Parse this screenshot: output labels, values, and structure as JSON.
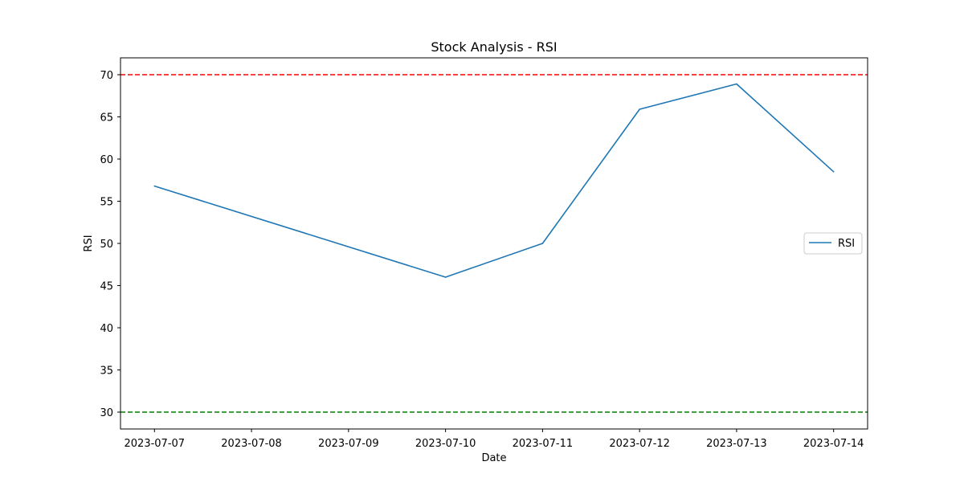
{
  "chart_data": {
    "type": "line",
    "title": "Stock Analysis - RSI",
    "xlabel": "Date",
    "ylabel": "RSI",
    "x": [
      "2023-07-07",
      "2023-07-08",
      "2023-07-09",
      "2023-07-10",
      "2023-07-11",
      "2023-07-12",
      "2023-07-13",
      "2023-07-14"
    ],
    "series": [
      {
        "name": "RSI",
        "color": "#1f77b4",
        "points": [
          {
            "x": "2023-07-07",
            "y": 56.8
          },
          {
            "x": "2023-07-10",
            "y": 46.0
          },
          {
            "x": "2023-07-11",
            "y": 50.0
          },
          {
            "x": "2023-07-12",
            "y": 65.9
          },
          {
            "x": "2023-07-13",
            "y": 68.9
          },
          {
            "x": "2023-07-14",
            "y": 58.5
          }
        ]
      }
    ],
    "reference_lines": [
      {
        "y": 70,
        "color": "#ff0000",
        "style": "dashed"
      },
      {
        "y": 30,
        "color": "#008000",
        "style": "dashed"
      }
    ],
    "ylim": [
      28,
      72
    ],
    "yticks": [
      30,
      35,
      40,
      45,
      50,
      55,
      60,
      65,
      70
    ],
    "grid": false,
    "legend": {
      "entries": [
        "RSI"
      ],
      "placement": "center-right"
    }
  }
}
